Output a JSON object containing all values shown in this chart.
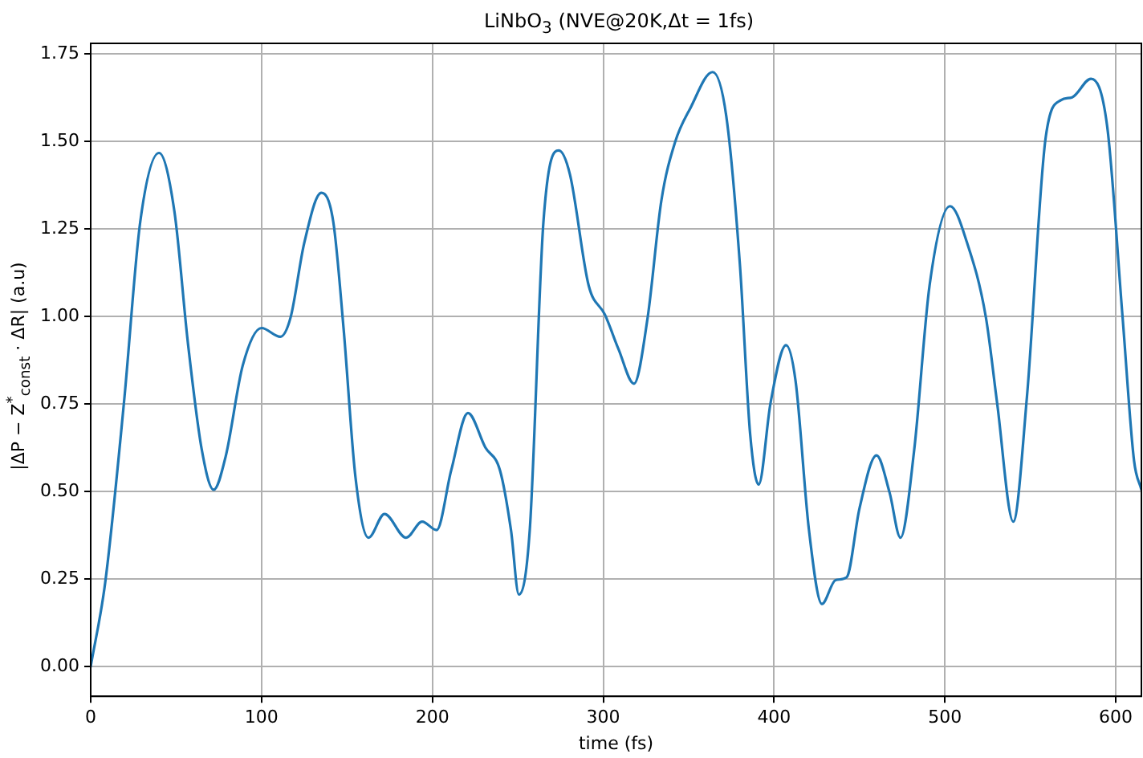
{
  "chart_data": {
    "type": "line",
    "title": "LiNbO$_{3}$ (NVE@20K,Δt = 1fs)",
    "xlabel": "time (fs)",
    "ylabel": "|ΔP − Z$^{*}$$_{const}$ · ΔR| (a.u)",
    "x": [
      0,
      8.5,
      19.5,
      29,
      40,
      49,
      57,
      65,
      72,
      79,
      89,
      100,
      111,
      117,
      125,
      135,
      142,
      148,
      155,
      162.6,
      172,
      184.6,
      194,
      202.5,
      211,
      220.8,
      231,
      239.6,
      246,
      250.6,
      257,
      265,
      274,
      280.5,
      291.5,
      301,
      309,
      318,
      326,
      334,
      342,
      351,
      364,
      372,
      380,
      386,
      391,
      398,
      407,
      412.6,
      420.4,
      428,
      436,
      442.5,
      450,
      460,
      467.6,
      474,
      482,
      491,
      503,
      513,
      524,
      530.5,
      540,
      548,
      559,
      568,
      574.5,
      585.5,
      595,
      604,
      610.7,
      615
    ],
    "values": [
      0,
      0.24,
      0.755,
      1.27,
      1.467,
      1.3,
      0.92,
      0.62,
      0.505,
      0.6,
      0.86,
      0.967,
      0.942,
      0.997,
      1.21,
      1.353,
      1.27,
      0.967,
      0.54,
      0.368,
      0.436,
      0.368,
      0.414,
      0.39,
      0.56,
      0.724,
      0.626,
      0.56,
      0.39,
      0.206,
      0.39,
      1.27,
      1.474,
      1.406,
      1.088,
      1.005,
      0.906,
      0.808,
      0.997,
      1.33,
      1.497,
      1.595,
      1.698,
      1.573,
      1.148,
      0.664,
      0.52,
      0.755,
      0.918,
      0.815,
      0.391,
      0.179,
      0.247,
      0.255,
      0.452,
      0.603,
      0.497,
      0.368,
      0.618,
      1.088,
      1.315,
      1.21,
      0.997,
      0.755,
      0.414,
      0.77,
      1.512,
      1.618,
      1.626,
      1.679,
      1.542,
      0.997,
      0.588,
      0.505
    ],
    "color": "#1f77b4",
    "marker": "none",
    "line_style": "solid",
    "grid": true,
    "xlim": [
      0,
      615
    ],
    "ylim": [
      -0.085,
      1.78
    ],
    "xticks": [
      0,
      100,
      200,
      300,
      400,
      500,
      600
    ],
    "yticks": [
      {
        "value": 0,
        "label": "0.00"
      },
      {
        "value": 0.25,
        "label": "0.25"
      },
      {
        "value": 0.5,
        "label": "0.50"
      },
      {
        "value": 0.75,
        "label": "0.75"
      },
      {
        "value": 1,
        "label": "1.00"
      },
      {
        "value": 1.25,
        "label": "1.25"
      },
      {
        "value": 1.5,
        "label": "1.50"
      },
      {
        "value": 1.75,
        "label": "1.75"
      }
    ]
  }
}
